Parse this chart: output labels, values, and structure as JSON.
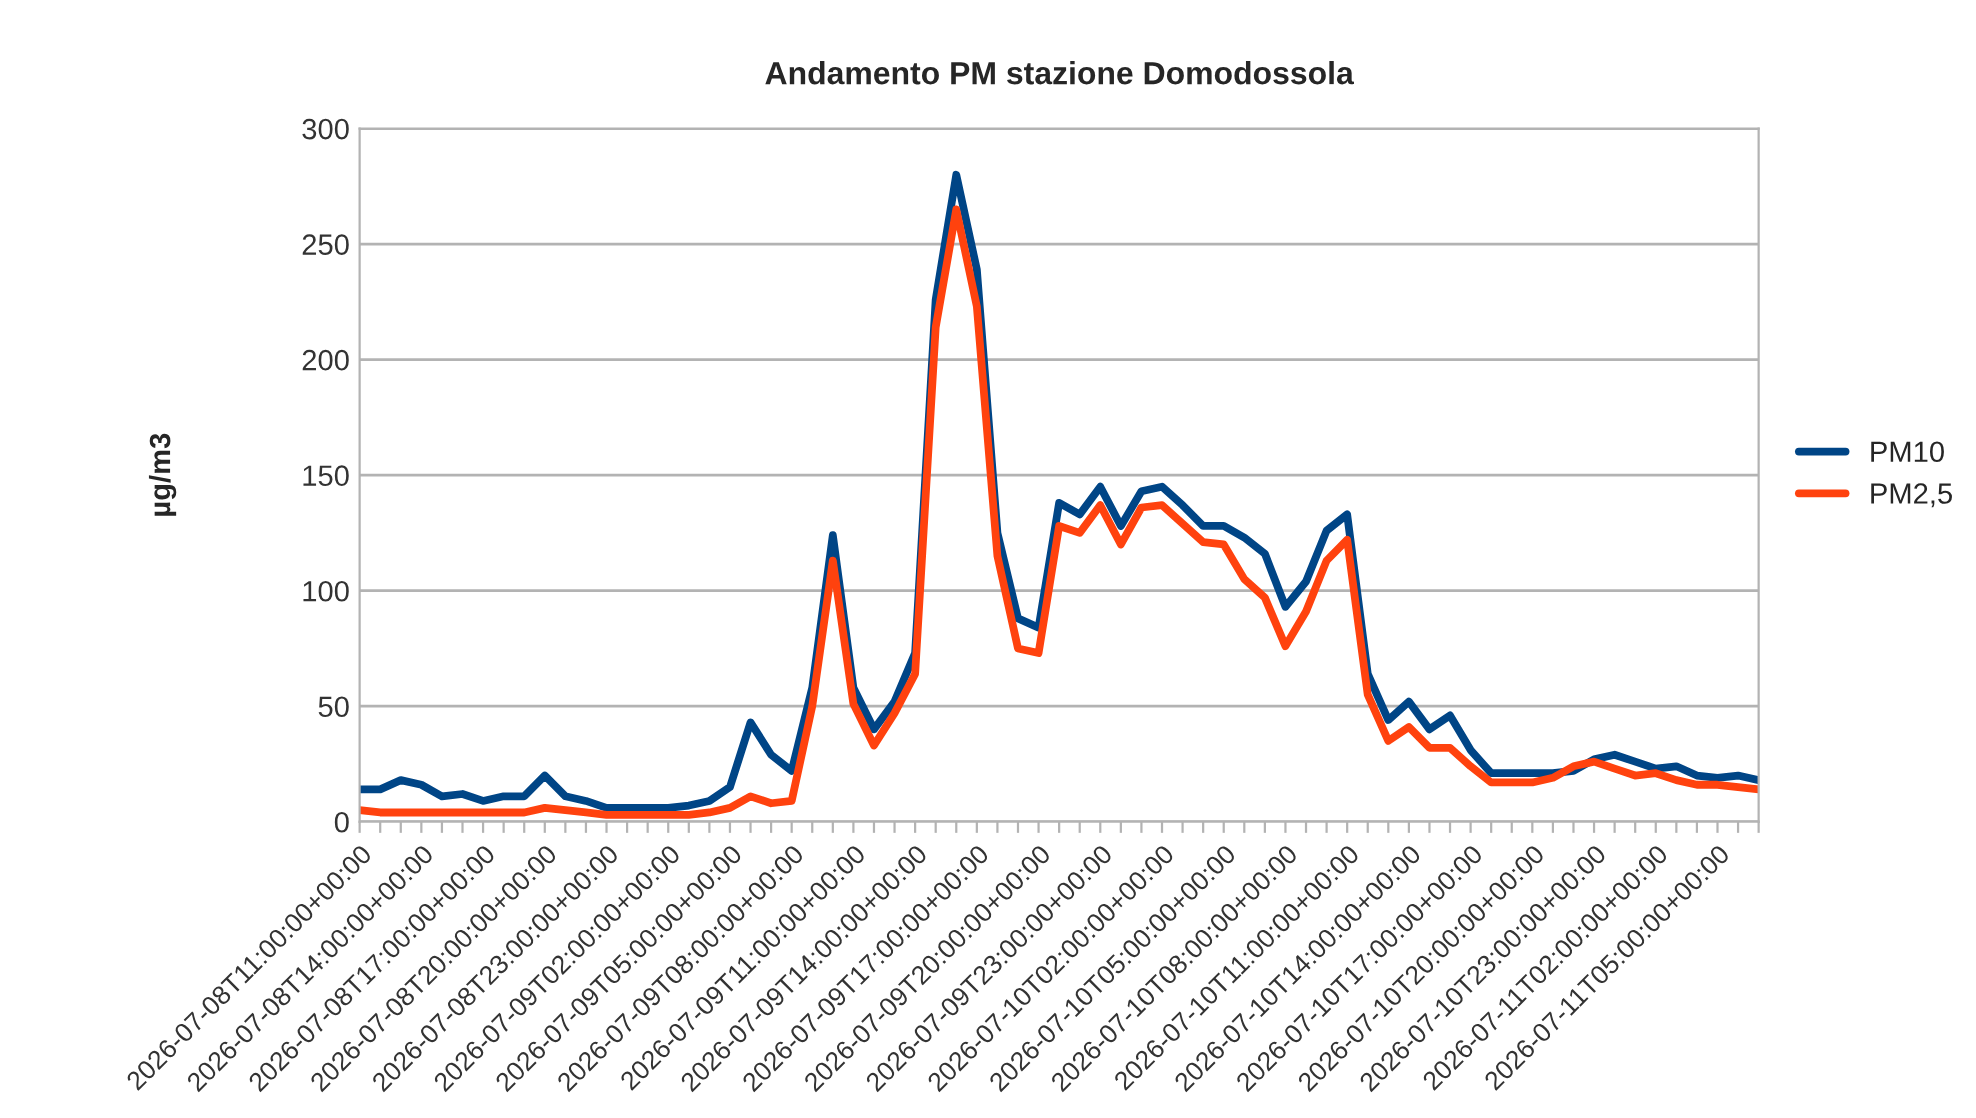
{
  "chart_data": {
    "type": "line",
    "title": "Andamento PM stazione Domodossola",
    "ylabel": "µg/m3",
    "categories": [
      "2026-07-08T11:00:00+00:00",
      null,
      null,
      "2026-07-08T14:00:00+00:00",
      null,
      null,
      "2026-07-08T17:00:00+00:00",
      null,
      null,
      "2026-07-08T20:00:00+00:00",
      null,
      null,
      "2026-07-08T23:00:00+00:00",
      null,
      null,
      "2026-07-09T02:00:00+00:00",
      null,
      null,
      "2026-07-09T05:00:00+00:00",
      null,
      null,
      "2026-07-09T08:00:00+00:00",
      null,
      null,
      "2026-07-09T11:00:00+00:00",
      null,
      null,
      "2026-07-09T14:00:00+00:00",
      null,
      null,
      "2026-07-09T17:00:00+00:00",
      null,
      null,
      "2026-07-09T20:00:00+00:00",
      null,
      null,
      "2026-07-09T23:00:00+00:00",
      null,
      null,
      "2026-07-10T02:00:00+00:00",
      null,
      null,
      "2026-07-10T05:00:00+00:00",
      null,
      null,
      "2026-07-10T08:00:00+00:00",
      null,
      null,
      "2026-07-10T11:00:00+00:00",
      null,
      null,
      "2026-07-10T14:00:00+00:00",
      null,
      null,
      "2026-07-10T17:00:00+00:00",
      null,
      null,
      "2026-07-10T20:00:00+00:00",
      null,
      null,
      "2026-07-10T23:00:00+00:00",
      null,
      null,
      "2026-07-11T02:00:00+00:00",
      null,
      null,
      "2026-07-11T05:00:00+00:00",
      null,
      null
    ],
    "series": [
      {
        "name": "PM10",
        "color": "#004586",
        "values": [
          14,
          14,
          18,
          16,
          11,
          12,
          9,
          11,
          11,
          20,
          11,
          9,
          6,
          6,
          6,
          6,
          7,
          9,
          15,
          43,
          29,
          22,
          58,
          124,
          58,
          40,
          52,
          73,
          226,
          280,
          239,
          125,
          88,
          84,
          138,
          133,
          145,
          128,
          143,
          145,
          137,
          128,
          128,
          123,
          116,
          93,
          104,
          126,
          133,
          64,
          44,
          52,
          40,
          46,
          31,
          21,
          21,
          21,
          21,
          22,
          27,
          29,
          26,
          23,
          24,
          20,
          19,
          20,
          18
        ]
      },
      {
        "name": "PM2,5",
        "color": "#ff420e",
        "values": [
          5,
          4,
          4,
          4,
          4,
          4,
          4,
          4,
          4,
          6,
          5,
          4,
          3,
          3,
          3,
          3,
          3,
          4,
          6,
          11,
          8,
          9,
          50,
          113,
          51,
          33,
          47,
          64,
          214,
          265,
          223,
          115,
          75,
          73,
          128,
          125,
          137,
          120,
          136,
          137,
          129,
          121,
          120,
          105,
          97,
          76,
          91,
          113,
          122,
          55,
          35,
          41,
          32,
          32,
          24,
          17,
          17,
          17,
          19,
          24,
          26,
          23,
          20,
          21,
          18,
          16,
          16,
          15,
          14
        ]
      }
    ],
    "ylim": [
      0,
      300
    ],
    "yticks": [
      0,
      50,
      100,
      150,
      200,
      250,
      300
    ],
    "grid": "y",
    "legend": "right",
    "marker": "none",
    "line_style": "solid"
  }
}
